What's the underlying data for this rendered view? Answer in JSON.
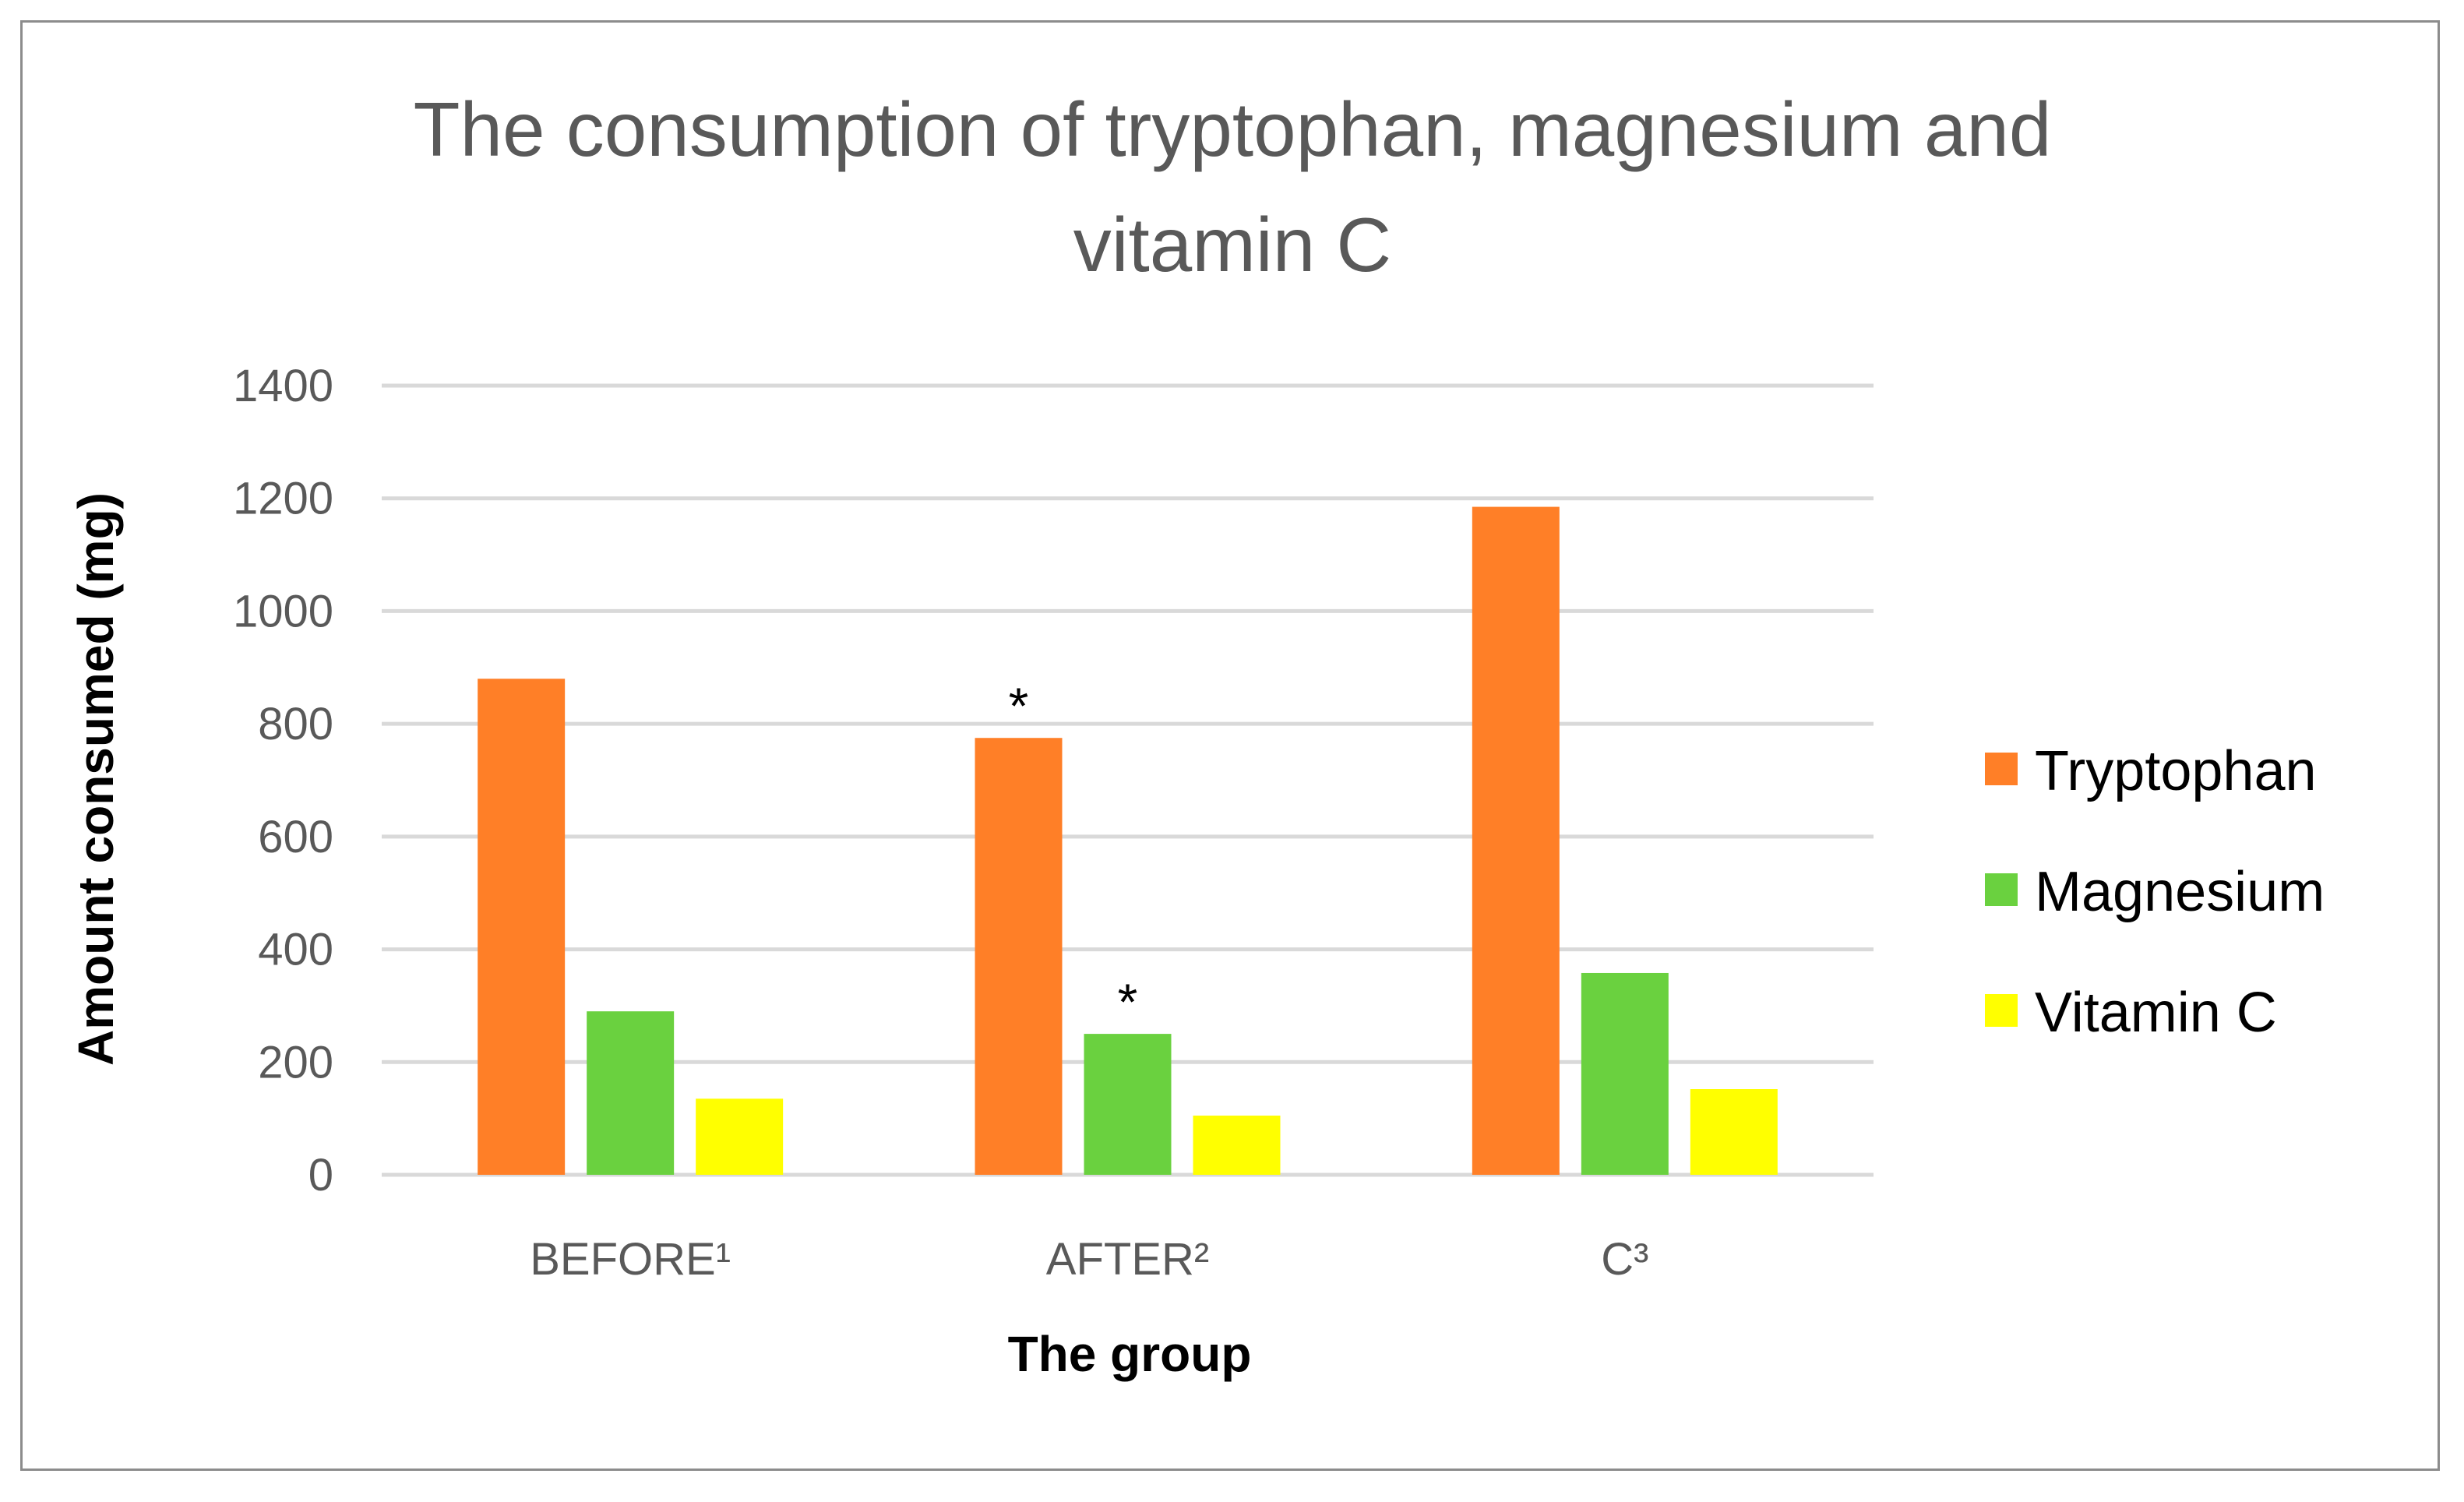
{
  "chart_data": {
    "type": "bar",
    "title_lines": [
      "The consumption of tryptophan, magnesium and",
      "vitamin C"
    ],
    "xlabel": "The group",
    "ylabel": "Amount consumed (mg)",
    "categories": [
      "BEFORE¹",
      "AFTER²",
      "C³"
    ],
    "ylim": [
      0,
      1400
    ],
    "yticks": [
      "0",
      "200",
      "400",
      "600",
      "800",
      "1000",
      "1200",
      "1400"
    ],
    "grid": true,
    "legend_position": "right",
    "series": [
      {
        "name": "Tryptophan",
        "color": "#ff7f27",
        "values": [
          880,
          775,
          1185
        ]
      },
      {
        "name": "Magnesium",
        "color": "#6ad13f",
        "values": [
          290,
          250,
          358
        ]
      },
      {
        "name": "Vitamin C",
        "color": "#ffff00",
        "values": [
          135,
          105,
          152
        ]
      }
    ],
    "annotations": [
      {
        "text": "*",
        "category": "AFTER²",
        "series": "Tryptophan"
      },
      {
        "text": "*",
        "category": "AFTER²",
        "series": "Magnesium"
      }
    ]
  }
}
